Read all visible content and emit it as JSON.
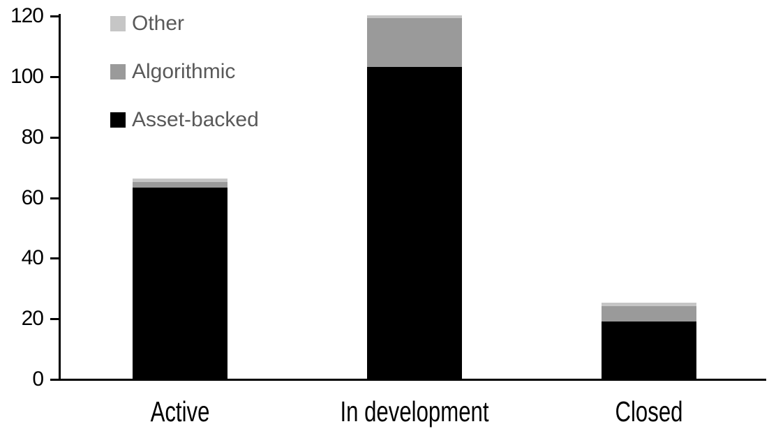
{
  "chart_data": {
    "type": "bar",
    "stacked": true,
    "title": "",
    "categories": [
      "Active",
      "In development",
      "Closed"
    ],
    "series": [
      {
        "name": "Asset-backed",
        "color": "#000000",
        "values": [
          63,
          103,
          19
        ]
      },
      {
        "name": "Algorithmic",
        "color": "#9a9a9a",
        "values": [
          2,
          16,
          5
        ]
      },
      {
        "name": "Other",
        "color": "#c6c6c6",
        "values": [
          1,
          1,
          1
        ]
      }
    ],
    "totals": [
      66,
      120,
      25
    ],
    "xlabel": "",
    "ylabel": "",
    "ylim": [
      0,
      120
    ],
    "yticks": [
      0,
      20,
      40,
      60,
      80,
      100,
      120
    ],
    "grid": false,
    "legend_position": "top-left",
    "legend_order": [
      "Other",
      "Algorithmic",
      "Asset-backed"
    ],
    "colors": {
      "axis": "#000000",
      "tick_label": "#000000",
      "category_label": "#000000",
      "legend_text": "#595959",
      "background": "#ffffff"
    }
  }
}
